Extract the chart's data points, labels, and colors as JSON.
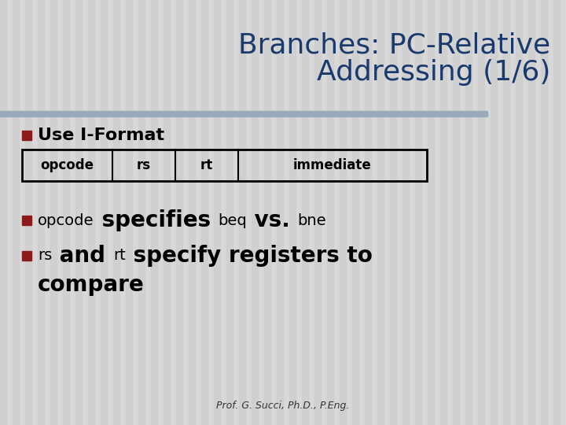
{
  "title_line1": "Branches: PC-Relative",
  "title_line2": "Addressing (1/6)",
  "title_color": "#1a3a6e",
  "title_fontsize": 26,
  "bg_color": "#d8d8d8",
  "stripe_color": "#cccccc",
  "bullet_color": "#8b1a1a",
  "separator_color": "#9aaabb",
  "bullet1_text": "Use I-Format",
  "table_headers": [
    "opcode",
    "rs",
    "rt",
    "immediate"
  ],
  "footer": "Prof. G. Succi, Ph.D., P.Eng.",
  "footer_color": "#333333",
  "footer_fontsize": 9,
  "mono_font": "Courier New",
  "title_font": "DejaVu Sans",
  "body_font": "DejaVu Sans"
}
